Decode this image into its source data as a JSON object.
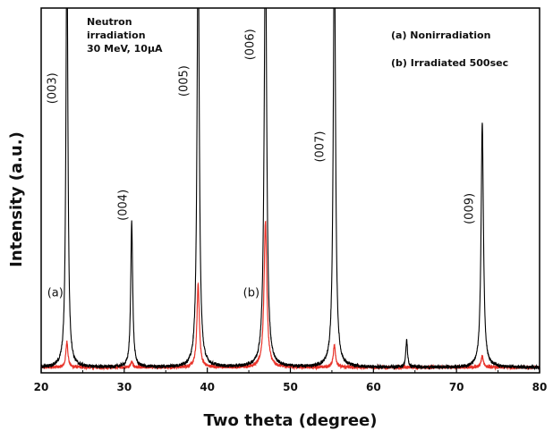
{
  "chart_data": {
    "type": "line",
    "xlabel": "Two theta (degree)",
    "ylabel": "Intensity (a.u.)",
    "xlim": [
      20,
      80
    ],
    "xticks": [
      20,
      30,
      40,
      50,
      60,
      70,
      80
    ],
    "ylim": [
      0,
      100
    ],
    "grid": false,
    "annotations_left": [
      "Neutron",
      "irradiation",
      "30 MeV, 10µA"
    ],
    "legend_lines": [
      "(a) Nonirradiation",
      "(b) Irradiated 500sec"
    ],
    "curve_labels": [
      {
        "text": "(a)",
        "x": 21.7,
        "y": 21
      },
      {
        "text": "(b)",
        "x": 45.3,
        "y": 21
      }
    ],
    "peak_labels": [
      {
        "text": "(003)",
        "x": 21.8,
        "y": 78
      },
      {
        "text": "(004)",
        "x": 30.3,
        "y": 46
      },
      {
        "text": "(005)",
        "x": 37.6,
        "y": 80
      },
      {
        "text": "(006)",
        "x": 45.6,
        "y": 90
      },
      {
        "text": "(007)",
        "x": 54.0,
        "y": 62
      },
      {
        "text": "(009)",
        "x": 72.0,
        "y": 45
      }
    ],
    "series": [
      {
        "color": "#000000",
        "baseline": 1.5,
        "peaks": [
          {
            "x": 23.1,
            "height": 120,
            "width": 0.14
          },
          {
            "x": 30.9,
            "height": 40,
            "width": 0.14
          },
          {
            "x": 38.9,
            "height": 120,
            "width": 0.16
          },
          {
            "x": 47.0,
            "height": 120,
            "width": 0.18
          },
          {
            "x": 55.3,
            "height": 120,
            "width": 0.16
          },
          {
            "x": 64.0,
            "height": 7.5,
            "width": 0.12
          },
          {
            "x": 73.1,
            "height": 67,
            "width": 0.17
          }
        ]
      },
      {
        "color": "#e8332a",
        "baseline": 1.5,
        "peaks": [
          {
            "x": 23.1,
            "height": 7,
            "width": 0.15
          },
          {
            "x": 30.9,
            "height": 1.5,
            "width": 0.15
          },
          {
            "x": 38.9,
            "height": 23,
            "width": 0.17
          },
          {
            "x": 47.0,
            "height": 40,
            "width": 0.2
          },
          {
            "x": 55.3,
            "height": 6,
            "width": 0.17
          },
          {
            "x": 64.0,
            "height": 0,
            "width": 0.12
          },
          {
            "x": 73.1,
            "height": 3,
            "width": 0.17
          }
        ]
      }
    ]
  }
}
